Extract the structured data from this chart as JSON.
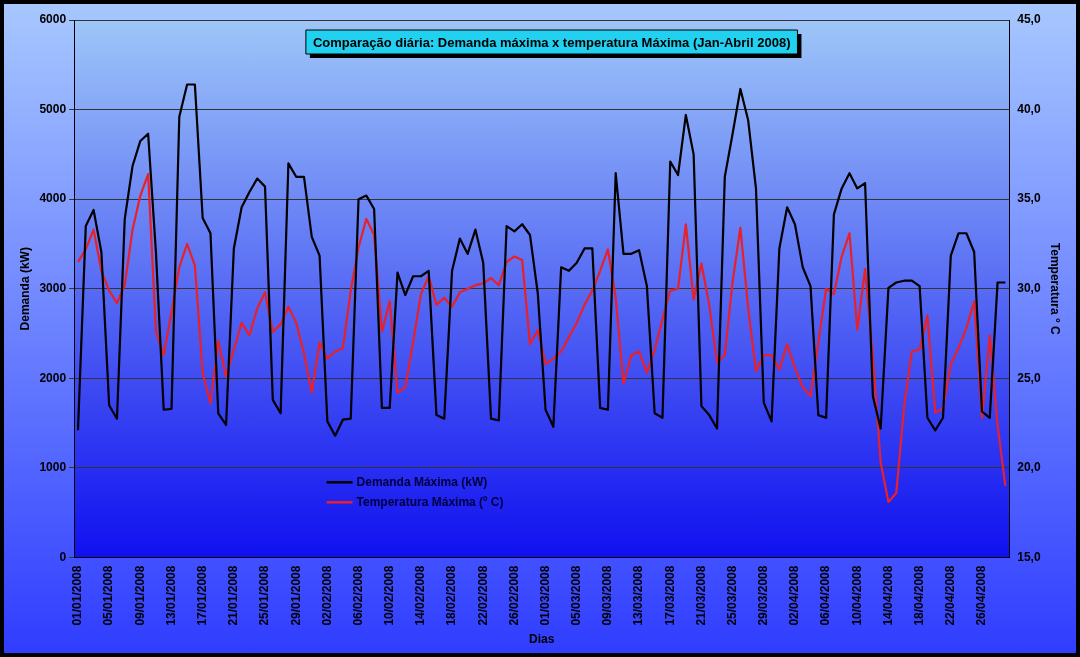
{
  "chart_data": {
    "type": "line",
    "title": "Comparação diária: Demanda máxima x temperatura Máxima (Jan-Abril 2008)",
    "xlabel": "Dias",
    "ylabel": "Demanda (kW)",
    "y2label": "Temperatura ° C",
    "categories": [
      "01/01/2008",
      null,
      null,
      null,
      "05/01/2008",
      null,
      null,
      null,
      "09/01/2008",
      null,
      null,
      null,
      "13/01/2008",
      null,
      null,
      null,
      "17/01/2008",
      null,
      null,
      null,
      "21/01/2008",
      null,
      null,
      null,
      "25/01/2008",
      null,
      null,
      null,
      "29/01/2008",
      null,
      null,
      null,
      "02/02/2008",
      null,
      null,
      null,
      "06/02/2008",
      null,
      null,
      null,
      "10/02/2008",
      null,
      null,
      null,
      "14/02/2008",
      null,
      null,
      null,
      "18/02/2008",
      null,
      null,
      null,
      "22/02/2008",
      null,
      null,
      null,
      "26/02/2008",
      null,
      null,
      null,
      "01/03/2008",
      null,
      null,
      null,
      "05/03/2008",
      null,
      null,
      null,
      "09/03/2008",
      null,
      null,
      null,
      "13/03/2008",
      null,
      null,
      null,
      "17/03/2008",
      null,
      null,
      null,
      "21/03/2008",
      null,
      null,
      null,
      "25/03/2008",
      null,
      null,
      null,
      "29/03/2008",
      null,
      null,
      null,
      "02/04/2008",
      null,
      null,
      null,
      "06/04/2008",
      null,
      null,
      null,
      "10/04/2008",
      null,
      null,
      null,
      "14/04/2008",
      null,
      null,
      null,
      "18/04/2008",
      null,
      null,
      null,
      "22/04/2008",
      null,
      null,
      null,
      "26/04/2008",
      null,
      null,
      null
    ],
    "series": [
      {
        "name": "Demanda Máxima (kW)",
        "color": "#000000",
        "values": [
          1420,
          3700,
          3880,
          3410,
          1700,
          1550,
          3780,
          4370,
          4650,
          4730,
          3410,
          1650,
          1660,
          4920,
          5280,
          5280,
          3790,
          3620,
          1610,
          1480,
          3450,
          3910,
          4080,
          4230,
          4140,
          1760,
          1610,
          4400,
          4250,
          4250,
          3580,
          3370,
          1520,
          1360,
          1540,
          1550,
          4000,
          4040,
          3890,
          1670,
          1670,
          3180,
          2930,
          3140,
          3140,
          3200,
          1590,
          1550,
          3200,
          3560,
          3390,
          3660,
          3290,
          1550,
          1530,
          3700,
          3640,
          3720,
          3600,
          2950,
          1650,
          1460,
          3240,
          3200,
          3290,
          3450,
          3450,
          1670,
          1650,
          4290,
          3390,
          3390,
          3430,
          3030,
          1610,
          1560,
          4420,
          4270,
          4940,
          4500,
          1690,
          1590,
          1440,
          4250,
          4730,
          5230,
          4880,
          4120,
          1730,
          1520,
          3450,
          3910,
          3720,
          3240,
          3030,
          1590,
          1560,
          3830,
          4120,
          4290,
          4120,
          4180,
          1800,
          1440,
          3010,
          3070,
          3090,
          3090,
          3030,
          1560,
          1420,
          1560,
          3370,
          3620,
          3620,
          3410,
          1630,
          1560,
          3070,
          3070
        ]
      },
      {
        "name": "Temperatura Máxima (º C)",
        "color": "#e8202a",
        "axis": "y2",
        "values": [
          31.5,
          32.2,
          33.3,
          31.0,
          29.9,
          29.2,
          30.2,
          33.3,
          35.2,
          36.4,
          27.6,
          26.3,
          28.7,
          31.2,
          32.5,
          31.3,
          25.3,
          23.6,
          27.1,
          25.1,
          26.6,
          28.1,
          27.4,
          28.9,
          29.8,
          27.6,
          28.0,
          29.0,
          28.1,
          26.4,
          24.2,
          27.0,
          26.1,
          26.5,
          26.7,
          29.9,
          32.3,
          33.9,
          33.0,
          27.6,
          29.3,
          24.2,
          24.5,
          27.0,
          29.7,
          30.7,
          29.1,
          29.5,
          29.0,
          29.8,
          30.0,
          30.2,
          30.3,
          30.6,
          30.2,
          31.5,
          31.8,
          31.6,
          26.9,
          27.7,
          25.8,
          26.1,
          26.5,
          27.3,
          28.1,
          29.1,
          29.9,
          31.0,
          32.2,
          29.5,
          24.7,
          26.3,
          26.5,
          25.3,
          26.6,
          28.3,
          29.9,
          30.0,
          33.6,
          29.4,
          31.4,
          29.1,
          25.9,
          26.3,
          30.4,
          33.4,
          28.9,
          25.4,
          26.3,
          26.3,
          25.5,
          26.9,
          25.6,
          24.5,
          24.0,
          27.0,
          30.0,
          29.7,
          31.8,
          33.1,
          27.7,
          31.1,
          26.2,
          20.3,
          18.1,
          18.6,
          23.4,
          26.5,
          26.6,
          28.5,
          23.1,
          23.3,
          25.8,
          26.7,
          27.8,
          29.3,
          22.8,
          27.4,
          22.4,
          19.0
        ]
      }
    ],
    "ylim": [
      0,
      6000
    ],
    "yticks": [
      0,
      1000,
      2000,
      3000,
      4000,
      5000,
      6000
    ],
    "y2lim": [
      15,
      45
    ],
    "y2ticks": [
      {
        "value": 15,
        "label": "15,0"
      },
      {
        "value": 20,
        "label": "20,0"
      },
      {
        "value": 25,
        "label": "25,0"
      },
      {
        "value": 30,
        "label": "30,0"
      },
      {
        "value": 35,
        "label": "35,0"
      },
      {
        "value": 40,
        "label": "40,0"
      },
      {
        "value": 45,
        "label": "45,0"
      }
    ],
    "grid": "y",
    "legend": "bottom",
    "marker": "none",
    "line_style": "solid"
  }
}
